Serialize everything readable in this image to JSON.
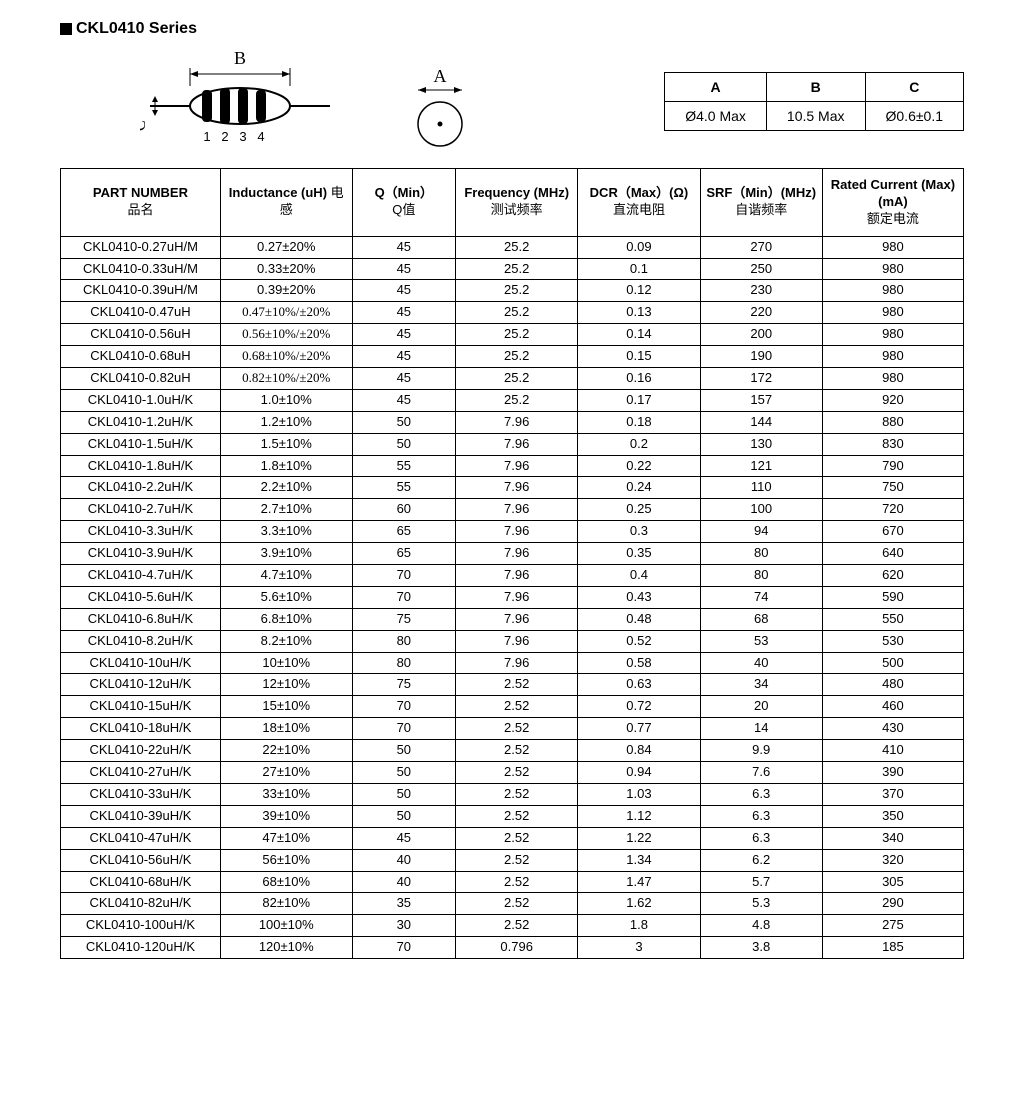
{
  "series_title": "CKL0410 Series",
  "diagram_labels": {
    "B": "B",
    "A": "A",
    "C": "C",
    "nums": "1 2 3 4"
  },
  "dim_table": {
    "headers": [
      "A",
      "B",
      "C"
    ],
    "values": [
      "Ø4.0 Max",
      "10.5 Max",
      "Ø0.6±0.1"
    ]
  },
  "spec_headers": {
    "part": {
      "en": "PART NUMBER",
      "cn": "品名"
    },
    "ind": {
      "en": "Inductance (uH)",
      "cn": "电感"
    },
    "q": {
      "en": "Q（Min）",
      "cn": "Q值"
    },
    "freq": {
      "en": "Frequency (MHz)",
      "cn": "测试频率"
    },
    "dcr": {
      "en": "DCR（Max）(Ω)",
      "cn": "直流电阻"
    },
    "srf": {
      "en": "SRF（Min）(MHz)",
      "cn": "自谐频率"
    },
    "cur": {
      "en": "Rated Current (Max) (mA)",
      "cn": "额定电流"
    }
  },
  "rows": [
    {
      "part": "CKL0410-0.27uH/M",
      "ind": "0.27±20%",
      "q": "45",
      "freq": "25.2",
      "dcr": "0.09",
      "srf": "270",
      "cur": "980"
    },
    {
      "part": "CKL0410-0.33uH/M",
      "ind": "0.33±20%",
      "q": "45",
      "freq": "25.2",
      "dcr": "0.1",
      "srf": "250",
      "cur": "980"
    },
    {
      "part": "CKL0410-0.39uH/M",
      "ind": "0.39±20%",
      "q": "45",
      "freq": "25.2",
      "dcr": "0.12",
      "srf": "230",
      "cur": "980"
    },
    {
      "part": "CKL0410-0.47uH",
      "ind": "0.47±10%/±20%",
      "ind_small": true,
      "q": "45",
      "freq": "25.2",
      "dcr": "0.13",
      "srf": "220",
      "cur": "980"
    },
    {
      "part": "CKL0410-0.56uH",
      "ind": "0.56±10%/±20%",
      "ind_small": true,
      "q": "45",
      "freq": "25.2",
      "dcr": "0.14",
      "srf": "200",
      "cur": "980"
    },
    {
      "part": "CKL0410-0.68uH",
      "ind": "0.68±10%/±20%",
      "ind_small": true,
      "q": "45",
      "freq": "25.2",
      "dcr": "0.15",
      "srf": "190",
      "cur": "980"
    },
    {
      "part": "CKL0410-0.82uH",
      "ind": "0.82±10%/±20%",
      "ind_small": true,
      "q": "45",
      "freq": "25.2",
      "dcr": "0.16",
      "srf": "172",
      "cur": "980"
    },
    {
      "part": "CKL0410-1.0uH/K",
      "ind": "1.0±10%",
      "q": "45",
      "freq": "25.2",
      "dcr": "0.17",
      "srf": "157",
      "cur": "920"
    },
    {
      "part": "CKL0410-1.2uH/K",
      "ind": "1.2±10%",
      "q": "50",
      "freq": "7.96",
      "dcr": "0.18",
      "srf": "144",
      "cur": "880"
    },
    {
      "part": "CKL0410-1.5uH/K",
      "ind": "1.5±10%",
      "q": "50",
      "freq": "7.96",
      "dcr": "0.2",
      "srf": "130",
      "cur": "830"
    },
    {
      "part": "CKL0410-1.8uH/K",
      "ind": "1.8±10%",
      "q": "55",
      "freq": "7.96",
      "dcr": "0.22",
      "srf": "121",
      "cur": "790"
    },
    {
      "part": "CKL0410-2.2uH/K",
      "ind": "2.2±10%",
      "q": "55",
      "freq": "7.96",
      "dcr": "0.24",
      "srf": "110",
      "cur": "750"
    },
    {
      "part": "CKL0410-2.7uH/K",
      "ind": "2.7±10%",
      "q": "60",
      "freq": "7.96",
      "dcr": "0.25",
      "srf": "100",
      "cur": "720"
    },
    {
      "part": "CKL0410-3.3uH/K",
      "ind": "3.3±10%",
      "q": "65",
      "freq": "7.96",
      "dcr": "0.3",
      "srf": "94",
      "cur": "670"
    },
    {
      "part": "CKL0410-3.9uH/K",
      "ind": "3.9±10%",
      "q": "65",
      "freq": "7.96",
      "dcr": "0.35",
      "srf": "80",
      "cur": "640"
    },
    {
      "part": "CKL0410-4.7uH/K",
      "ind": "4.7±10%",
      "q": "70",
      "freq": "7.96",
      "dcr": "0.4",
      "srf": "80",
      "cur": "620"
    },
    {
      "part": "CKL0410-5.6uH/K",
      "ind": "5.6±10%",
      "q": "70",
      "freq": "7.96",
      "dcr": "0.43",
      "srf": "74",
      "cur": "590"
    },
    {
      "part": "CKL0410-6.8uH/K",
      "ind": "6.8±10%",
      "q": "75",
      "freq": "7.96",
      "dcr": "0.48",
      "srf": "68",
      "cur": "550"
    },
    {
      "part": "CKL0410-8.2uH/K",
      "ind": "8.2±10%",
      "q": "80",
      "freq": "7.96",
      "dcr": "0.52",
      "srf": "53",
      "cur": "530"
    },
    {
      "part": "CKL0410-10uH/K",
      "ind": "10±10%",
      "q": "80",
      "freq": "7.96",
      "dcr": "0.58",
      "srf": "40",
      "cur": "500"
    },
    {
      "part": "CKL0410-12uH/K",
      "ind": "12±10%",
      "q": "75",
      "freq": "2.52",
      "dcr": "0.63",
      "srf": "34",
      "cur": "480"
    },
    {
      "part": "CKL0410-15uH/K",
      "ind": "15±10%",
      "q": "70",
      "freq": "2.52",
      "dcr": "0.72",
      "srf": "20",
      "cur": "460"
    },
    {
      "part": "CKL0410-18uH/K",
      "ind": "18±10%",
      "q": "70",
      "freq": "2.52",
      "dcr": "0.77",
      "srf": "14",
      "cur": "430"
    },
    {
      "part": "CKL0410-22uH/K",
      "ind": "22±10%",
      "q": "50",
      "freq": "2.52",
      "dcr": "0.84",
      "srf": "9.9",
      "cur": "410"
    },
    {
      "part": "CKL0410-27uH/K",
      "ind": "27±10%",
      "q": "50",
      "freq": "2.52",
      "dcr": "0.94",
      "srf": "7.6",
      "cur": "390"
    },
    {
      "part": "CKL0410-33uH/K",
      "ind": "33±10%",
      "q": "50",
      "freq": "2.52",
      "dcr": "1.03",
      "srf": "6.3",
      "cur": "370"
    },
    {
      "part": "CKL0410-39uH/K",
      "ind": "39±10%",
      "q": "50",
      "freq": "2.52",
      "dcr": "1.12",
      "srf": "6.3",
      "cur": "350"
    },
    {
      "part": "CKL0410-47uH/K",
      "ind": "47±10%",
      "q": "45",
      "freq": "2.52",
      "dcr": "1.22",
      "srf": "6.3",
      "cur": "340"
    },
    {
      "part": "CKL0410-56uH/K",
      "ind": "56±10%",
      "q": "40",
      "freq": "2.52",
      "dcr": "1.34",
      "srf": "6.2",
      "cur": "320"
    },
    {
      "part": "CKL0410-68uH/K",
      "ind": "68±10%",
      "q": "40",
      "freq": "2.52",
      "dcr": "1.47",
      "srf": "5.7",
      "cur": "305"
    },
    {
      "part": "CKL0410-82uH/K",
      "ind": "82±10%",
      "q": "35",
      "freq": "2.52",
      "dcr": "1.62",
      "srf": "5.3",
      "cur": "290"
    },
    {
      "part": "CKL0410-100uH/K",
      "ind": "100±10%",
      "q": "30",
      "freq": "2.52",
      "dcr": "1.8",
      "srf": "4.8",
      "cur": "275"
    },
    {
      "part": "CKL0410-120uH/K",
      "ind": "120±10%",
      "q": "70",
      "freq": "0.796",
      "dcr": "3",
      "srf": "3.8",
      "cur": "185"
    }
  ]
}
